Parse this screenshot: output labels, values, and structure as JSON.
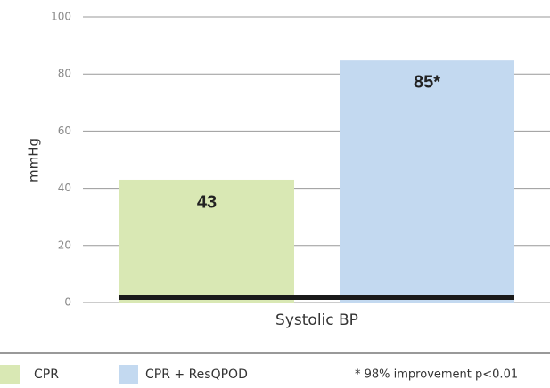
{
  "chart_data": {
    "type": "bar",
    "ylabel": "mmHg",
    "categories": [
      "Systolic BP"
    ],
    "series": [
      {
        "name": "CPR",
        "color": "#d9e8b4",
        "values": [
          43
        ],
        "value_labels": [
          "43"
        ]
      },
      {
        "name": "CPR + ResQPOD",
        "color": "#c3d9f0",
        "values": [
          85
        ],
        "value_labels": [
          "85*"
        ]
      }
    ],
    "ylim": [
      0,
      100
    ],
    "yticks": [
      0,
      20,
      40,
      60,
      80,
      100
    ],
    "grid": true,
    "footnote": "* 98% improvement p<0.01"
  }
}
